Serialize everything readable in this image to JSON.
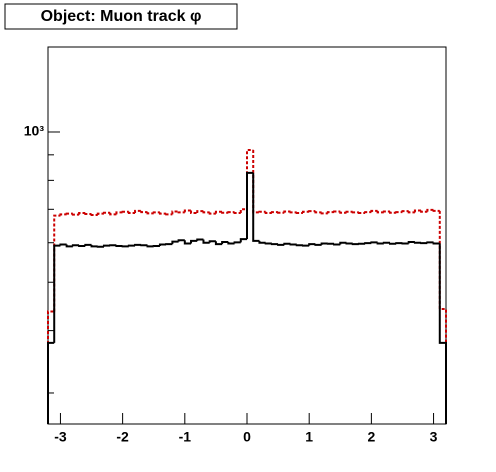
{
  "chart_data": {
    "type": "histogram",
    "title": "Object: Muon track φ",
    "log_y": true,
    "xlim": [
      -3.2,
      3.2
    ],
    "xticks": [
      -3,
      -2,
      -1,
      0,
      1,
      2,
      3
    ],
    "ylim": [
      260,
      1480
    ],
    "yticks": [
      {
        "value": 1000,
        "label": "10³"
      }
    ],
    "yminor_ticks": [
      300,
      400,
      500,
      600,
      700,
      800,
      900
    ],
    "bins": [
      -3.2,
      -3.1,
      -3.0,
      -2.9,
      -2.8,
      -2.7,
      -2.6,
      -2.5,
      -2.4,
      -2.3,
      -2.2,
      -2.1,
      -2.0,
      -1.9,
      -1.8,
      -1.7,
      -1.6,
      -1.5,
      -1.4,
      -1.3,
      -1.2,
      -1.1,
      -1.0,
      -0.9,
      -0.8,
      -0.7,
      -0.6,
      -0.5,
      -0.4,
      -0.3,
      -0.2,
      -0.1,
      0.0,
      0.1,
      0.2,
      0.3,
      0.4,
      0.5,
      0.6,
      0.7,
      0.8,
      0.9,
      1.0,
      1.1,
      1.2,
      1.3,
      1.4,
      1.5,
      1.6,
      1.7,
      1.8,
      1.9,
      2.0,
      2.1,
      2.2,
      2.3,
      2.4,
      2.5,
      2.6,
      2.7,
      2.8,
      2.9,
      3.0,
      3.1,
      3.2
    ],
    "series": [
      {
        "color": "#cc0000",
        "style": "dashed",
        "values": [
          437,
          680,
          684,
          686,
          683,
          688,
          685,
          682,
          686,
          689,
          684,
          690,
          692,
          688,
          695,
          691,
          687,
          690,
          686,
          684,
          693,
          690,
          696,
          688,
          694,
          690,
          686,
          692,
          689,
          691,
          688,
          700,
          920,
          690,
          692,
          688,
          691,
          689,
          693,
          690,
          688,
          692,
          694,
          690,
          687,
          691,
          693,
          689,
          692,
          690,
          688,
          691,
          695,
          690,
          693,
          689,
          691,
          694,
          690,
          696,
          692,
          698,
          695,
          442
        ]
      },
      {
        "color": "#000000",
        "style": "solid",
        "values": [
          378,
          592,
          595,
          590,
          593,
          591,
          594,
          590,
          589,
          592,
          593,
          591,
          590,
          592,
          594,
          593,
          590,
          591,
          595,
          596,
          603,
          607,
          598,
          605,
          609,
          600,
          604,
          596,
          602,
          598,
          601,
          610,
          828,
          605,
          600,
          598,
          596,
          594,
          597,
          595,
          593,
          592,
          596,
          594,
          598,
          597,
          595,
          600,
          598,
          596,
          597,
          599,
          601,
          598,
          600,
          597,
          599,
          598,
          602,
          600,
          599,
          601,
          598,
          378
        ]
      }
    ]
  }
}
